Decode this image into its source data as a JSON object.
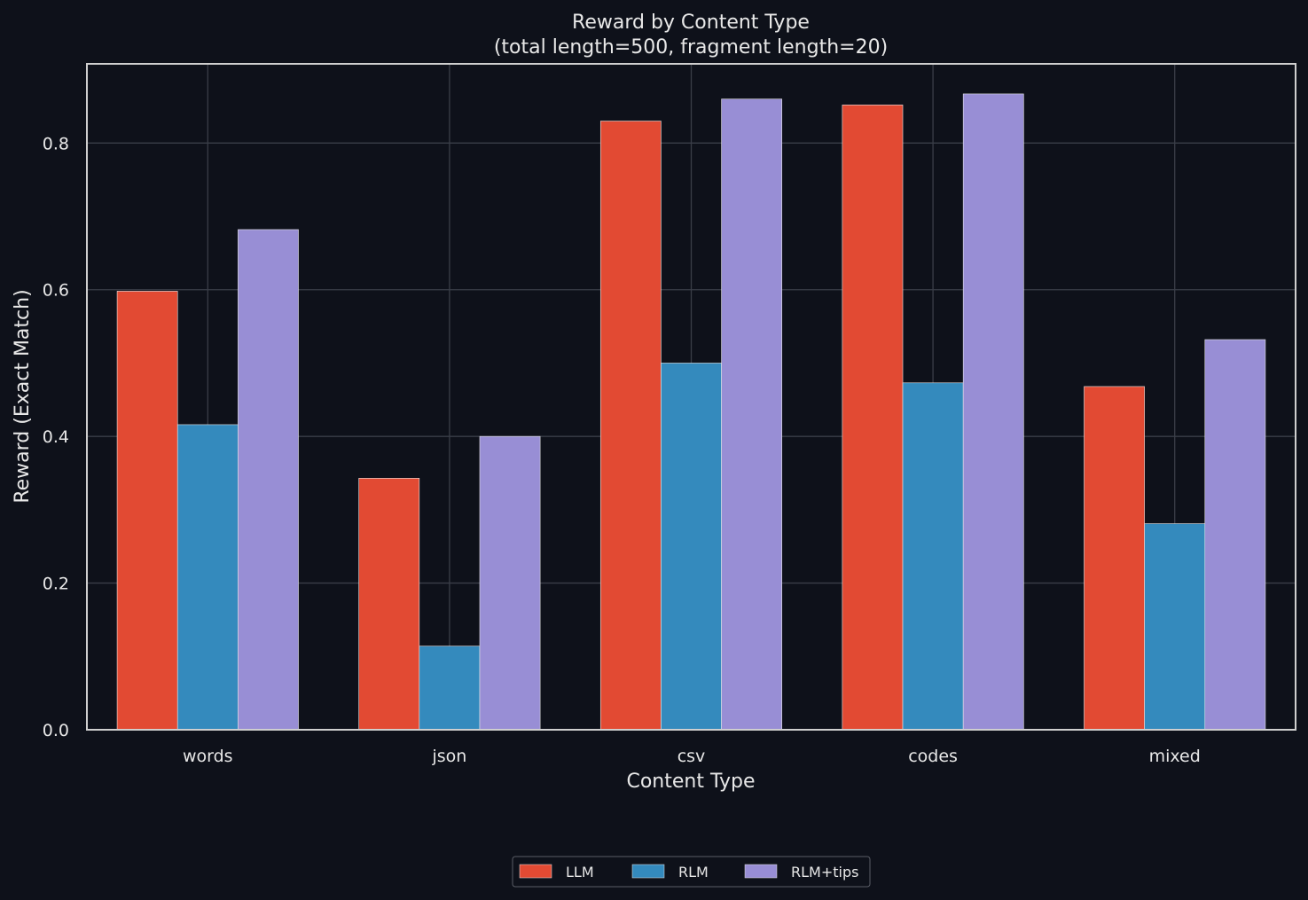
{
  "chart_data": {
    "type": "bar",
    "title": "Reward by Content Type",
    "subtitle": "(total length=500, fragment length=20)",
    "xlabel": "Content Type",
    "ylabel": "Reward (Exact Match)",
    "categories": [
      "words",
      "json",
      "csv",
      "codes",
      "mixed"
    ],
    "ylim": [
      0,
      0.908
    ],
    "yticks": [
      0.0,
      0.2,
      0.4,
      0.6,
      0.8
    ],
    "ytick_labels": [
      "0.0",
      "0.2",
      "0.4",
      "0.6",
      "0.8"
    ],
    "grid": true,
    "legend_position": "bottom-center",
    "series": [
      {
        "name": "LLM",
        "color": "#e24a33",
        "values": [
          0.598,
          0.343,
          0.83,
          0.852,
          0.468
        ]
      },
      {
        "name": "RLM",
        "color": "#348abd",
        "values": [
          0.416,
          0.114,
          0.5,
          0.473,
          0.281
        ]
      },
      {
        "name": "RLM+tips",
        "color": "#988ed5",
        "values": [
          0.682,
          0.4,
          0.86,
          0.867,
          0.532
        ]
      }
    ]
  }
}
